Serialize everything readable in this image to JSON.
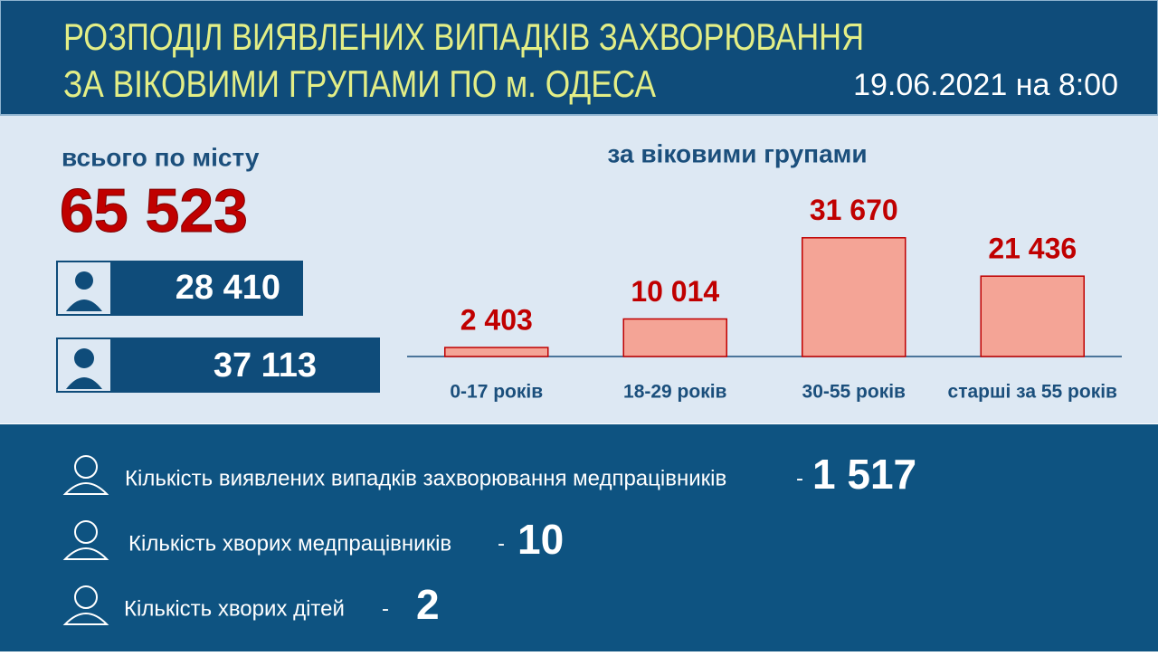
{
  "header": {
    "title_line1": "РОЗПОДІЛ ВИЯВЛЕНИХ ВИПАДКІВ ЗАХВОРЮВАННЯ",
    "title_line2": "ЗА ВІКОВИМИ ГРУПАМИ ПО м. ОДЕСА",
    "date": "19.06.2021 на 8:00"
  },
  "totals": {
    "label": "всього по місту",
    "total": "65 523",
    "men": "28 410",
    "women": "37 113"
  },
  "chart_data": {
    "type": "bar",
    "title": "за віковими групами",
    "categories": [
      "0-17 років",
      "18-29 років",
      "30-55 років",
      "старші за 55 років"
    ],
    "values": [
      2403,
      10014,
      31670,
      21436
    ],
    "value_labels": [
      "2 403",
      "10 014",
      "31 670",
      "21 436"
    ],
    "color": "#f4a496",
    "ylim": [
      0,
      35000
    ]
  },
  "stats": [
    {
      "label": "Кількість виявлених випадків захворювання медпрацівників",
      "dash": "-",
      "value": "1 517"
    },
    {
      "label": "Кількість хворих медпрацівників",
      "dash": "-",
      "value": "10"
    },
    {
      "label": "Кількість хворих дітей",
      "dash": "-",
      "value": "2"
    }
  ]
}
